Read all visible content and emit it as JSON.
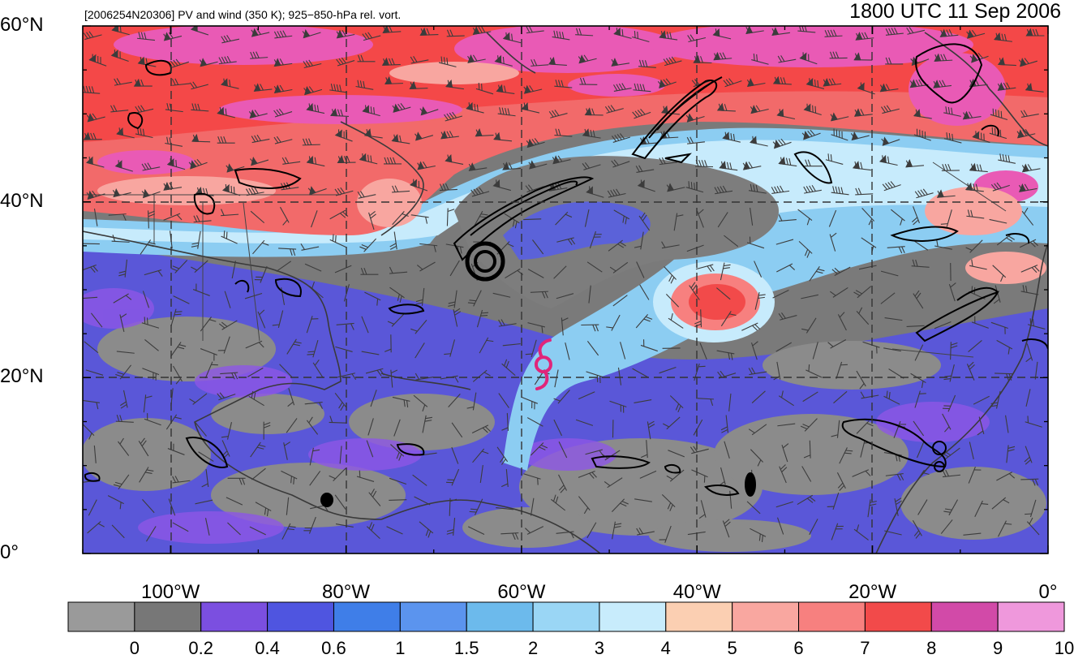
{
  "header": {
    "title_left": "[2006254N20306] PV and wind (350 K); 925−850-hPa rel. vort.",
    "title_right": "1800 UTC 11 Sep 2006"
  },
  "axes": {
    "lat_labels": [
      "60°N",
      "40°N",
      "20°N",
      "0°"
    ],
    "lat_values": [
      60,
      40,
      20,
      0
    ],
    "lon_labels": [
      "100°W",
      "80°W",
      "60°W",
      "40°W",
      "20°W",
      "0°"
    ],
    "lon_values": [
      -100,
      -80,
      -60,
      -40,
      -20,
      0
    ],
    "lon_range": [
      -110,
      0
    ],
    "lat_range": [
      0,
      60
    ]
  },
  "colorbar": {
    "labels": [
      "0",
      "0.2",
      "0.4",
      "0.6",
      "1",
      "1.5",
      "2",
      "3",
      "4",
      "5",
      "6",
      "7",
      "8",
      "9",
      "10"
    ],
    "colors": [
      "#9a9a9a",
      "#777777",
      "#7b4fe0",
      "#4f55e0",
      "#3f7ee8",
      "#5b94ee",
      "#6cbaec",
      "#9ad6f5",
      "#c8ecfc",
      "#fbcfb2",
      "#f9a7a0",
      "#f7807f",
      "#f24a4a",
      "#d24aa8",
      "#ef98dc"
    ]
  },
  "storm": {
    "symbol": "hurricane-symbol",
    "lon": -57.5,
    "lat": 21.5,
    "color": "#e0257a"
  }
}
